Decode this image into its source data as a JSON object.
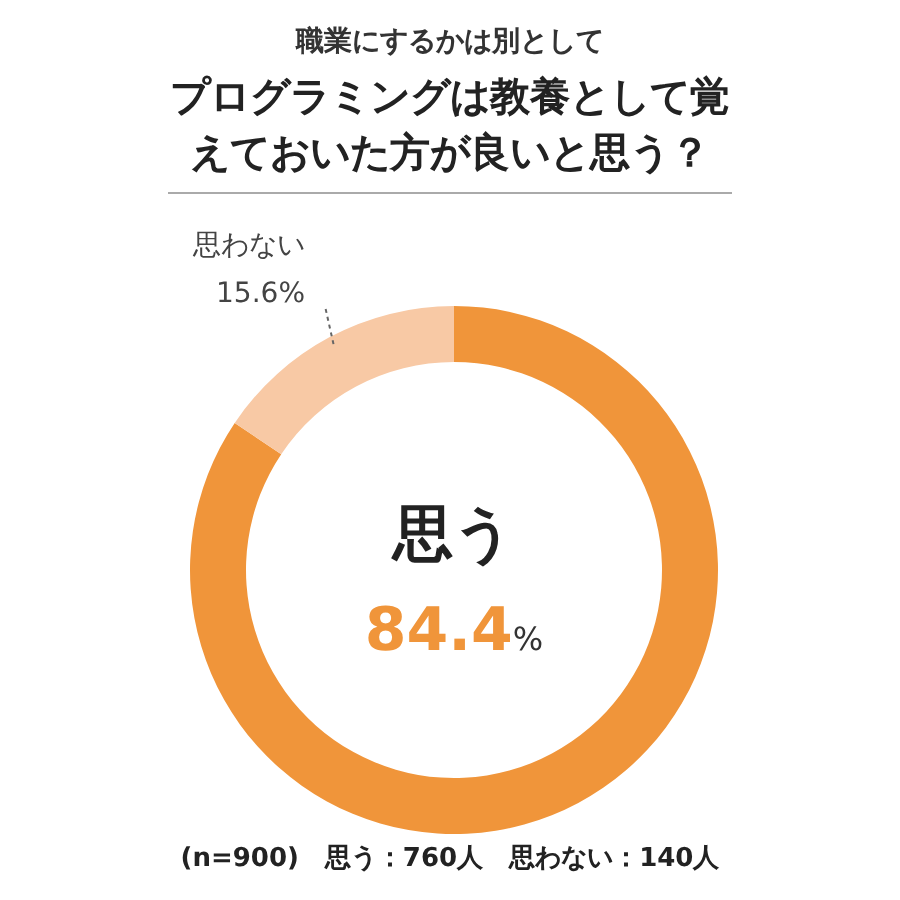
{
  "chart_data": {
    "type": "donut",
    "subtitle": "職業にするかは別として",
    "title": "プログラミングは教養として覚えておいた方が良いと思う？",
    "categories": [
      "思う",
      "思わない"
    ],
    "values": [
      84.4,
      15.6
    ],
    "colors": [
      "#f0953a",
      "#f8c9a5"
    ],
    "value_labels": [
      "84.4%",
      "15.6%"
    ],
    "annotations": [
      "(n=900)　思う：760人　思わない：140人"
    ]
  }
}
